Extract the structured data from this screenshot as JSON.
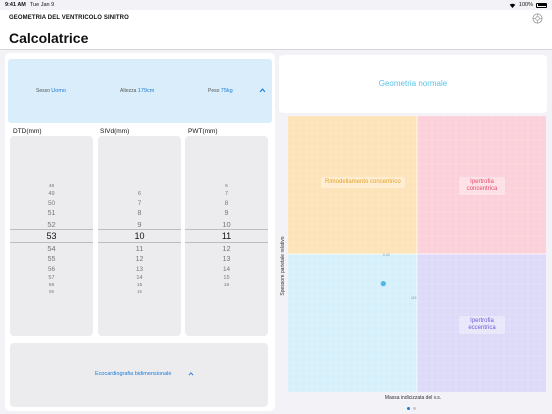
{
  "status_bar": {
    "time": "9:41 AM",
    "date": "Tue Jan 9",
    "battery": "100%"
  },
  "header": {
    "app_title": "GEOMETRIA DEL VENTRICOLO SINITRO",
    "page_title": "Calcolatrice"
  },
  "patient": {
    "sex_label": "Sesso",
    "sex_value": "Uomo",
    "height_label": "Altezza",
    "height_value": "179cm",
    "weight_label": "Peso",
    "weight_value": "75kg"
  },
  "pickers": [
    {
      "label": "DTD(mm)",
      "above": [
        "",
        "48",
        "49",
        "50",
        "51",
        "52"
      ],
      "selected": "53",
      "below": [
        "54",
        "55",
        "56",
        "57",
        "58",
        "59"
      ]
    },
    {
      "label": "SIVd(mm)",
      "above": [
        "",
        "",
        "6",
        "7",
        "8",
        "9"
      ],
      "selected": "10",
      "below": [
        "11",
        "12",
        "13",
        "14",
        "15",
        "16"
      ]
    },
    {
      "label": "PWT(mm)",
      "above": [
        "",
        "6",
        "7",
        "8",
        "9",
        "10"
      ],
      "selected": "11",
      "below": [
        "12",
        "13",
        "14",
        "15",
        "16",
        ""
      ]
    }
  ],
  "echo": {
    "label": "Ecocardiografia bidimensionale"
  },
  "result": {
    "text": "Geometria normale"
  },
  "chart_data": {
    "type": "scatter",
    "xlabel": "Massa indicizzata del v.s.",
    "ylabel": "Spessore parietale relativo",
    "quadrants": {
      "top_left": "Rimodellamento concentrico",
      "top_right": "Ipertrofia concentrica",
      "bottom_left": "",
      "bottom_right": "Ipertrofia eccentrica"
    },
    "threshold_labels": {
      "y": "0.42",
      "x": "115"
    },
    "point": {
      "x": 85,
      "y": 0.33
    },
    "colors": {
      "top_left": "#fde3b8",
      "top_right": "#fcd0d9",
      "bottom_left": "#d5f0fb",
      "bottom_right": "#dcdaf7",
      "point": "#4cb9e6"
    }
  },
  "page_dots": 2
}
